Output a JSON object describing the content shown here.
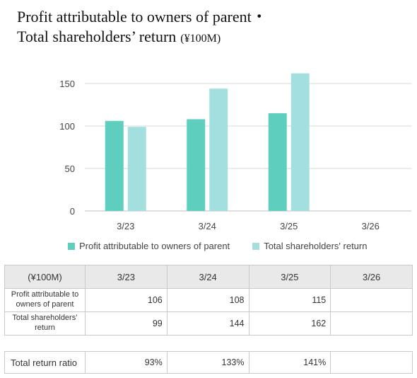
{
  "title": {
    "line1": "Profit attributable to owners of parent・",
    "line2": "Total shareholders’ return",
    "unit": "(¥100M)"
  },
  "colors": {
    "profit": "#5ecfbf",
    "return": "#a3dfdf",
    "grid": "#d9d9d9",
    "axis": "#bfbfbf"
  },
  "chart_data": {
    "type": "bar",
    "categories": [
      "3/23",
      "3/24",
      "3/25",
      "3/26"
    ],
    "series": [
      {
        "name": "Profit attributable to owners of parent",
        "values": [
          106,
          108,
          115,
          null
        ]
      },
      {
        "name": "Total shareholders' return",
        "values": [
          99,
          144,
          162,
          null
        ]
      }
    ],
    "yticks": [
      0,
      50,
      100,
      150
    ],
    "ylim": [
      0,
      165
    ],
    "grid": true,
    "legend": "bottom"
  },
  "table": {
    "unit_header": "(¥100M)",
    "headers": [
      "3/23",
      "3/24",
      "3/25",
      "3/26"
    ],
    "rows": [
      {
        "label": "Profit attributable to owners of parent",
        "values": [
          "106",
          "108",
          "115",
          ""
        ]
      },
      {
        "label": "Total shareholders’ return",
        "values": [
          "99",
          "144",
          "162",
          ""
        ]
      }
    ]
  },
  "ratio": {
    "label": "Total return ratio",
    "values": [
      "93%",
      "133%",
      "141%",
      ""
    ]
  }
}
